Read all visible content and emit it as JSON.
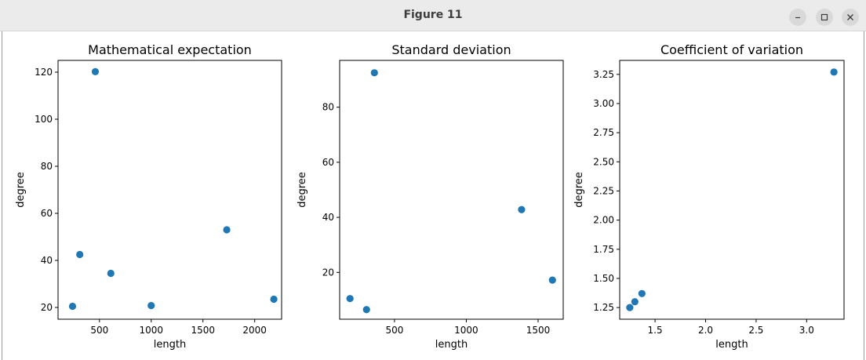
{
  "window": {
    "title": "Figure 11"
  },
  "colors": {
    "marker": "#1f77b4",
    "titlebar": "#ebebeb"
  },
  "chart_data": [
    {
      "type": "scatter",
      "title": "Mathematical expectation",
      "xlabel": "length",
      "ylabel": "degree",
      "xlim": [
        100,
        2260
      ],
      "ylim": [
        15,
        125
      ],
      "xticks": [
        500,
        1000,
        1500,
        2000
      ],
      "yticks": [
        20,
        40,
        60,
        80,
        100,
        120
      ],
      "xticklabels": [
        "500",
        "1000",
        "1500",
        "2000"
      ],
      "yticklabels": [
        "20",
        "40",
        "60",
        "80",
        "100",
        "120"
      ],
      "points": [
        {
          "x": 240,
          "y": 20.5
        },
        {
          "x": 310,
          "y": 42.5
        },
        {
          "x": 460,
          "y": 120.2
        },
        {
          "x": 610,
          "y": 34.5
        },
        {
          "x": 1000,
          "y": 20.8
        },
        {
          "x": 1730,
          "y": 53
        },
        {
          "x": 2185,
          "y": 23.5
        }
      ]
    },
    {
      "type": "scatter",
      "title": "Standard deviation",
      "xlabel": "length",
      "ylabel": "degree",
      "xlim": [
        118,
        1675
      ],
      "ylim": [
        3,
        97
      ],
      "xticks": [
        500,
        1000,
        1500
      ],
      "yticks": [
        20,
        40,
        60,
        80
      ],
      "xticklabels": [
        "500",
        "1000",
        "1500"
      ],
      "yticklabels": [
        "20",
        "40",
        "60",
        "80"
      ],
      "points": [
        {
          "x": 190,
          "y": 10.5
        },
        {
          "x": 305,
          "y": 6.5
        },
        {
          "x": 360,
          "y": 92.5
        },
        {
          "x": 1385,
          "y": 42.8
        },
        {
          "x": 1600,
          "y": 17.2
        }
      ]
    },
    {
      "type": "scatter",
      "title": "Coefficient of variation",
      "xlabel": "length",
      "ylabel": "degree",
      "xlim": [
        1.15,
        3.37
      ],
      "ylim": [
        1.15,
        3.37
      ],
      "xticks": [
        1.5,
        2.0,
        2.5,
        3.0
      ],
      "yticks": [
        1.25,
        1.5,
        1.75,
        2.0,
        2.25,
        2.5,
        2.75,
        3.0,
        3.25
      ],
      "xticklabels": [
        "1.5",
        "2.0",
        "2.5",
        "3.0"
      ],
      "yticklabels": [
        "1.25",
        "1.50",
        "1.75",
        "2.00",
        "2.25",
        "2.50",
        "2.75",
        "3.00",
        "3.25"
      ],
      "points": [
        {
          "x": 1.25,
          "y": 1.25
        },
        {
          "x": 1.3,
          "y": 1.3
        },
        {
          "x": 1.37,
          "y": 1.37
        },
        {
          "x": 3.27,
          "y": 3.27
        }
      ]
    }
  ]
}
